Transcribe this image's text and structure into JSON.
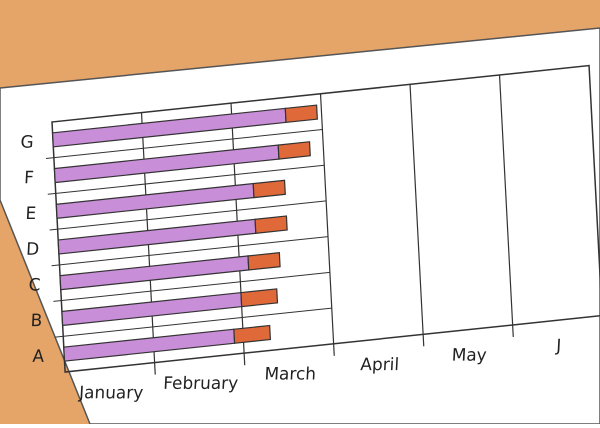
{
  "chart_data": {
    "type": "gantt",
    "categories": [
      "A",
      "B",
      "C",
      "D",
      "E",
      "F",
      "G"
    ],
    "series": [
      {
        "color": "#c98ed8",
        "values": [
          1.9,
          2.0,
          2.1,
          2.2,
          2.2,
          2.5,
          2.6
        ]
      },
      {
        "color": "#e0693a",
        "values": [
          0.4,
          0.4,
          0.35,
          0.35,
          0.35,
          0.35,
          0.35
        ]
      }
    ],
    "xlim": [
      0,
      6
    ],
    "xticks": [
      {
        "value": 0.5,
        "label": "January"
      },
      {
        "value": 1.5,
        "label": "February"
      },
      {
        "value": 2.5,
        "label": "March"
      },
      {
        "value": 3.5,
        "label": "April"
      },
      {
        "value": 4.5,
        "label": "May"
      },
      {
        "value": 5.5,
        "label": "J"
      }
    ],
    "grid": true
  }
}
